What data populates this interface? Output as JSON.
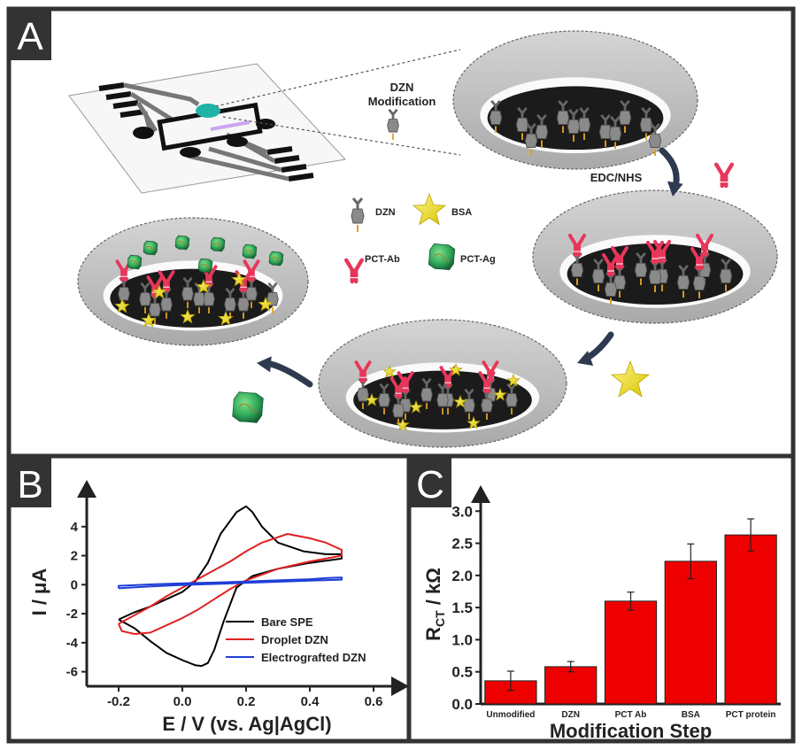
{
  "panel_a": {
    "letter": "A",
    "labels": {
      "dzn_mod_line1": "DZN",
      "dzn_mod_line2": "Modification",
      "edc_nhs": "EDC/NHS",
      "legend_dzn": "DZN",
      "legend_bsa": "BSA",
      "legend_ab": "PCT-Ab",
      "legend_ag": "PCT-Ag"
    },
    "colors": {
      "antibody": "#e8365a",
      "bsa": "#f2e21c",
      "antigen": "#2fa85a",
      "dzn": "#8a8a8a",
      "electrode": "#1b1b1b",
      "arrow": "#2e3a4f"
    }
  },
  "panel_b": {
    "letter": "B"
  },
  "panel_c": {
    "letter": "C"
  },
  "chart_data": [
    {
      "type": "line",
      "xlabel": "E / V (vs. Ag|AgCl)",
      "ylabel": "I / μA",
      "xlim": [
        -0.3,
        0.65
      ],
      "ylim": [
        -7,
        6
      ],
      "x_ticks": [
        "-0.2",
        "0.0",
        "0.2",
        "0.4",
        "0.6"
      ],
      "y_ticks": [
        "-6",
        "-4",
        "-2",
        "0",
        "2",
        "4"
      ],
      "legend_position": "lower-right",
      "series": [
        {
          "name": "Bare SPE",
          "color": "#000000",
          "points": [
            [
              -0.2,
              -2.4
            ],
            [
              -0.15,
              -3.0
            ],
            [
              -0.1,
              -3.9
            ],
            [
              -0.05,
              -4.7
            ],
            [
              0.0,
              -5.2
            ],
            [
              0.04,
              -5.55
            ],
            [
              0.06,
              -5.6
            ],
            [
              0.08,
              -5.4
            ],
            [
              0.1,
              -4.5
            ],
            [
              0.13,
              -2.5
            ],
            [
              0.17,
              -0.2
            ],
            [
              0.22,
              0.6
            ],
            [
              0.3,
              1.1
            ],
            [
              0.4,
              1.5
            ],
            [
              0.5,
              1.8
            ],
            [
              0.5,
              2.1
            ],
            [
              0.45,
              2.1
            ],
            [
              0.38,
              2.3
            ],
            [
              0.3,
              2.9
            ],
            [
              0.25,
              4.0
            ],
            [
              0.22,
              5.0
            ],
            [
              0.2,
              5.4
            ],
            [
              0.17,
              5.0
            ],
            [
              0.12,
              3.5
            ],
            [
              0.08,
              1.5
            ],
            [
              0.04,
              0.2
            ],
            [
              0.0,
              -0.5
            ],
            [
              -0.05,
              -1.0
            ],
            [
              -0.1,
              -1.5
            ],
            [
              -0.15,
              -1.9
            ],
            [
              -0.2,
              -2.4
            ]
          ]
        },
        {
          "name": "Droplet DZN",
          "color": "#e02020",
          "points": [
            [
              -0.2,
              -2.7
            ],
            [
              -0.19,
              -3.2
            ],
            [
              -0.15,
              -3.4
            ],
            [
              -0.1,
              -3.3
            ],
            [
              -0.05,
              -2.8
            ],
            [
              0.0,
              -2.3
            ],
            [
              0.05,
              -1.7
            ],
            [
              0.1,
              -1.0
            ],
            [
              0.15,
              -0.3
            ],
            [
              0.2,
              0.3
            ],
            [
              0.3,
              1.1
            ],
            [
              0.4,
              1.6
            ],
            [
              0.5,
              2.0
            ],
            [
              0.5,
              2.4
            ],
            [
              0.45,
              2.9
            ],
            [
              0.4,
              3.2
            ],
            [
              0.33,
              3.5
            ],
            [
              0.25,
              2.9
            ],
            [
              0.2,
              2.3
            ],
            [
              0.15,
              1.6
            ],
            [
              0.1,
              1.0
            ],
            [
              0.05,
              0.4
            ],
            [
              0.0,
              -0.2
            ],
            [
              -0.05,
              -0.8
            ],
            [
              -0.1,
              -1.5
            ],
            [
              -0.15,
              -2.1
            ],
            [
              -0.2,
              -2.7
            ]
          ]
        },
        {
          "name": "Electrografted DZN",
          "color": "#1f3fd6",
          "points": [
            [
              -0.2,
              -0.25
            ],
            [
              -0.1,
              -0.12
            ],
            [
              0.0,
              -0.02
            ],
            [
              0.1,
              0.05
            ],
            [
              0.2,
              0.12
            ],
            [
              0.3,
              0.2
            ],
            [
              0.4,
              0.28
            ],
            [
              0.5,
              0.35
            ],
            [
              0.5,
              0.5
            ],
            [
              0.45,
              0.45
            ],
            [
              0.4,
              0.38
            ],
            [
              0.3,
              0.3
            ],
            [
              0.2,
              0.22
            ],
            [
              0.1,
              0.15
            ],
            [
              0.0,
              0.1
            ],
            [
              -0.1,
              0.02
            ],
            [
              -0.2,
              -0.08
            ],
            [
              -0.2,
              -0.25
            ]
          ]
        }
      ]
    },
    {
      "type": "bar",
      "xlabel": "Modification Step",
      "ylabel": "R",
      "ylabel_sub": "CT",
      "ylabel_unit": " / kΩ",
      "ylim": [
        0,
        3.1
      ],
      "y_ticks": [
        "0.0",
        "0.5",
        "1.0",
        "1.5",
        "2.0",
        "2.5",
        "3.0"
      ],
      "categories": [
        "Unmodified",
        "DZN",
        "PCT Ab",
        "BSA",
        "PCT protein"
      ],
      "values": [
        0.36,
        0.58,
        1.6,
        2.22,
        2.63
      ],
      "errors": [
        0.15,
        0.08,
        0.14,
        0.27,
        0.25
      ],
      "bar_color": "#ee0000"
    }
  ]
}
